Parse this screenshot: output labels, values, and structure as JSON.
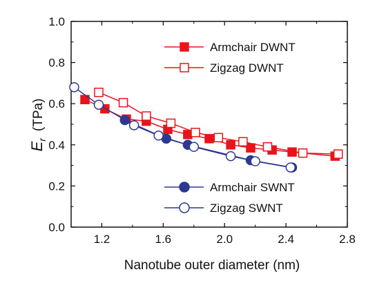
{
  "chart_data": {
    "type": "line",
    "xlabel": "Nanotube outer diameter (nm)",
    "ylabel": {
      "symbol": "E",
      "subscript": "r",
      "unit": "(TPa)"
    },
    "xlim": [
      1.0,
      2.8
    ],
    "ylim": [
      0.0,
      1.0
    ],
    "xticks": [
      "1.2",
      "1.6",
      "2.0",
      "2.4",
      "2.8"
    ],
    "xtick_values": [
      1.2,
      1.6,
      2.0,
      2.4,
      2.8
    ],
    "yticks": [
      "0.0",
      "0.2",
      "0.4",
      "0.6",
      "0.8",
      "1.0"
    ],
    "ytick_values": [
      0.0,
      0.2,
      0.4,
      0.6,
      0.8,
      1.0
    ],
    "grid": false,
    "legends": [
      {
        "placement": "top-right",
        "series": [
          0,
          1
        ]
      },
      {
        "placement": "bottom-right",
        "series": [
          2,
          3
        ]
      }
    ],
    "series": [
      {
        "name": "Armchair DWNT",
        "color": "#e8141b",
        "marker": "square",
        "filled": true,
        "x": [
          1.09,
          1.22,
          1.36,
          1.49,
          1.63,
          1.76,
          1.9,
          2.04,
          2.17,
          2.31,
          2.44,
          2.72
        ],
        "y": [
          0.62,
          0.575,
          0.525,
          0.515,
          0.475,
          0.45,
          0.43,
          0.4,
          0.385,
          0.375,
          0.365,
          0.345
        ]
      },
      {
        "name": "Zigzag DWNT",
        "color": "#e8141b",
        "marker": "square",
        "filled": false,
        "x": [
          1.18,
          1.34,
          1.49,
          1.65,
          1.81,
          1.96,
          2.12,
          2.28,
          2.51,
          2.74
        ],
        "y": [
          0.655,
          0.605,
          0.54,
          0.505,
          0.46,
          0.435,
          0.415,
          0.39,
          0.36,
          0.355
        ]
      },
      {
        "name": "Armchair SWNT",
        "color": "#2b3990",
        "marker": "circle",
        "filled": true,
        "x": [
          1.35,
          1.62,
          1.76,
          2.17,
          2.44
        ],
        "y": [
          0.52,
          0.43,
          0.4,
          0.325,
          0.29
        ]
      },
      {
        "name": "Zigzag SWNT",
        "color": "#2b3990",
        "marker": "circle",
        "filled": false,
        "x": [
          1.02,
          1.18,
          1.41,
          1.57,
          1.8,
          2.04,
          2.2,
          2.43
        ],
        "y": [
          0.68,
          0.595,
          0.495,
          0.445,
          0.39,
          0.345,
          0.32,
          0.29
        ]
      }
    ]
  }
}
